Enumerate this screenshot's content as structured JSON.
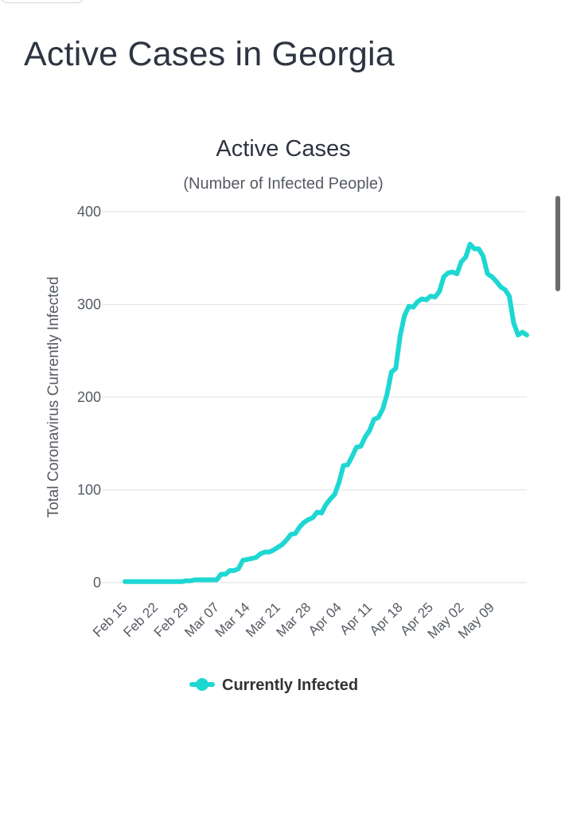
{
  "page": {
    "title": "Active Cases in Georgia"
  },
  "colors": {
    "series": "#1ed7d2",
    "grid": "#e3e6ea",
    "text": "#2e3440"
  },
  "chart_data": {
    "type": "line",
    "title": "Active Cases",
    "subtitle": "(Number of Infected People)",
    "ylabel": "Total Coronavirus Currently Infected",
    "xlabel": "",
    "ylim": [
      0,
      400
    ],
    "y_ticks": [
      0,
      100,
      200,
      300,
      400
    ],
    "x_tick_labels": [
      "Feb 15",
      "Feb 22",
      "Feb 29",
      "Mar 07",
      "Mar 14",
      "Mar 21",
      "Mar 28",
      "Apr 04",
      "Apr 11",
      "Apr 18",
      "Apr 25",
      "May 02",
      "May 09"
    ],
    "x_tick_every_days": 7,
    "grid": true,
    "legend_position": "bottom",
    "series": [
      {
        "name": "Currently Infected",
        "values": [
          1,
          1,
          1,
          1,
          1,
          1,
          1,
          1,
          1,
          1,
          1,
          1,
          1,
          1,
          2,
          2,
          3,
          3,
          3,
          3,
          3,
          3,
          9,
          9,
          13,
          13,
          15,
          24,
          25,
          26,
          27,
          31,
          33,
          33,
          35,
          38,
          41,
          46,
          52,
          53,
          60,
          65,
          68,
          70,
          76,
          75,
          84,
          90,
          95,
          108,
          126,
          127,
          136,
          146,
          147,
          157,
          164,
          176,
          178,
          187,
          203,
          227,
          231,
          266,
          288,
          298,
          297,
          303,
          306,
          305,
          309,
          308,
          314,
          330,
          334,
          335,
          333,
          346,
          351,
          365,
          360,
          360,
          352,
          333,
          330,
          325,
          319,
          316,
          309,
          280,
          267,
          270,
          267
        ]
      }
    ]
  },
  "legend": {
    "items": [
      {
        "label": "Currently Infected"
      }
    ]
  }
}
